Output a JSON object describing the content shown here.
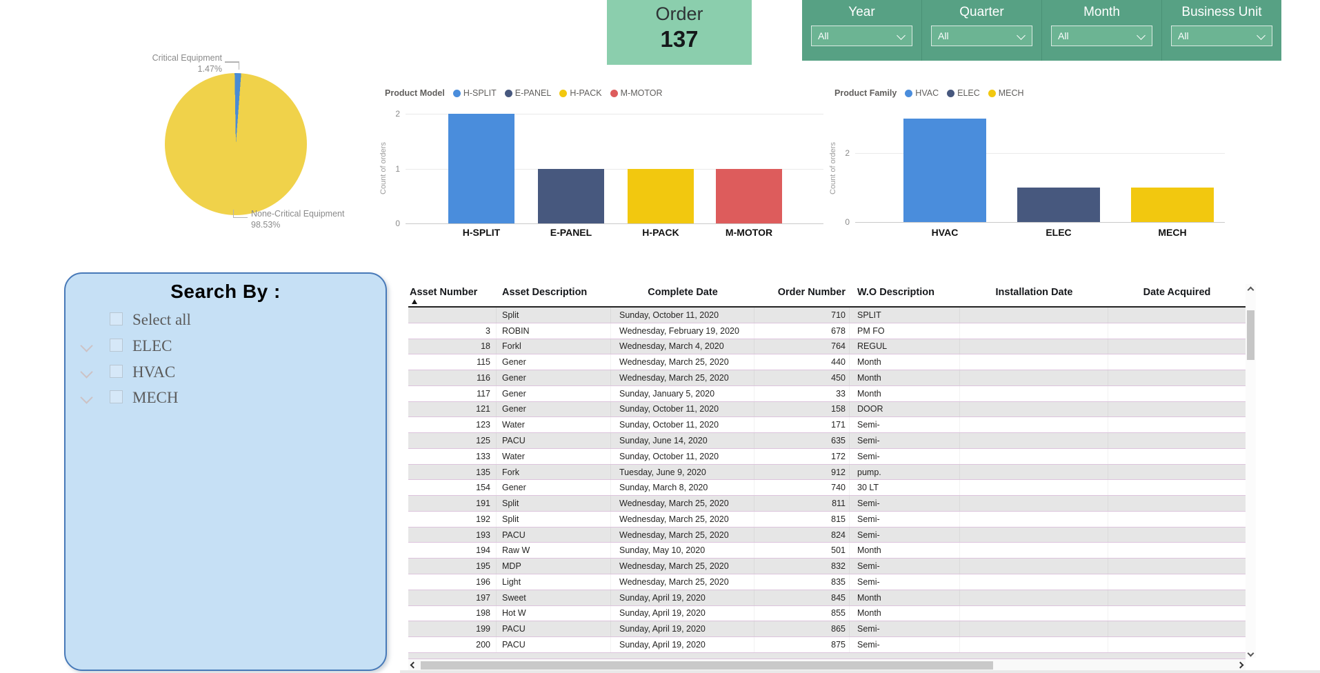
{
  "pie": {
    "callouts": [
      {
        "name": "Critical Equipment",
        "pct": "1.47%"
      },
      {
        "name": "None-Critical Equipment",
        "pct": "98.53%"
      }
    ],
    "slice_colors": [
      "#4A8BD4",
      "#F0D24A"
    ]
  },
  "order_card": {
    "title": "Order",
    "value": "137"
  },
  "slicers": {
    "items": [
      {
        "label": "Year",
        "value": "All"
      },
      {
        "label": "Quarter",
        "value": "All"
      },
      {
        "label": "Month",
        "value": "All"
      },
      {
        "label": "Business Unit",
        "value": "All"
      }
    ]
  },
  "product_model_chart": {
    "legend_title": "Product Model",
    "ylabel": "Count of orders",
    "yticks": [
      "2",
      "1",
      "0"
    ],
    "series": [
      {
        "label": "H-SPLIT",
        "value": 2,
        "color": "#4A8DDC"
      },
      {
        "label": "E-PANEL",
        "value": 1,
        "color": "#47587E"
      },
      {
        "label": "H-PACK",
        "value": 1,
        "color": "#F2C80F"
      },
      {
        "label": "M-MOTOR",
        "value": 1,
        "color": "#DD5C5C"
      }
    ]
  },
  "product_family_chart": {
    "legend_title": "Product Family",
    "ylabel": "Count of orders",
    "yticks": [
      "2",
      "0"
    ],
    "series": [
      {
        "label": "HVAC",
        "value": 3,
        "color": "#4A8DDC"
      },
      {
        "label": "ELEC",
        "value": 1,
        "color": "#47587E"
      },
      {
        "label": "MECH",
        "value": 1,
        "color": "#F2C80F"
      }
    ]
  },
  "search_panel": {
    "title": "Search By :",
    "items": [
      {
        "label": "Select all",
        "expandable": false,
        "checked": false
      },
      {
        "label": "ELEC",
        "expandable": true,
        "checked": false
      },
      {
        "label": "HVAC",
        "expandable": true,
        "checked": false
      },
      {
        "label": "MECH",
        "expandable": true,
        "checked": false
      }
    ]
  },
  "table": {
    "columns": [
      "Asset Number",
      "Asset Description",
      "Complete Date",
      "Order Number",
      "W.O Description",
      "Installation Date",
      "Date Acquired"
    ],
    "sort": {
      "column": "Asset Number",
      "direction": "asc"
    },
    "rows": [
      [
        "",
        "Split",
        "Sunday, October 11, 2020",
        "710",
        "SPLIT",
        "",
        ""
      ],
      [
        "3",
        "ROBIN",
        "Wednesday, February 19, 2020",
        "678",
        "PM FO",
        "",
        ""
      ],
      [
        "18",
        "Forkl",
        "Wednesday, March 4, 2020",
        "764",
        "REGUL",
        "",
        ""
      ],
      [
        "115",
        "Gener",
        "Wednesday, March 25, 2020",
        "440",
        "Month",
        "",
        ""
      ],
      [
        "116",
        "Gener",
        "Wednesday, March 25, 2020",
        "450",
        "Month",
        "",
        ""
      ],
      [
        "117",
        "Gener",
        "Sunday, January 5, 2020",
        "33",
        "Month",
        "",
        ""
      ],
      [
        "121",
        "Gener",
        "Sunday, October 11, 2020",
        "158",
        "DOOR",
        "",
        ""
      ],
      [
        "123",
        "Water",
        "Sunday, October 11, 2020",
        "171",
        "Semi-",
        "",
        ""
      ],
      [
        "125",
        "PACU",
        "Sunday, June 14, 2020",
        "635",
        "Semi-",
        "",
        ""
      ],
      [
        "133",
        "Water",
        "Sunday, October 11, 2020",
        "172",
        "Semi-",
        "",
        ""
      ],
      [
        "135",
        "Fork",
        "Tuesday, June 9, 2020",
        "912",
        "pump.",
        "",
        ""
      ],
      [
        "154",
        "Gener",
        "Sunday, March 8, 2020",
        "740",
        "30 LT",
        "",
        ""
      ],
      [
        "191",
        "Split",
        "Wednesday, March 25, 2020",
        "811",
        "Semi-",
        "",
        ""
      ],
      [
        "192",
        "Split",
        "Wednesday, March 25, 2020",
        "815",
        "Semi-",
        "",
        ""
      ],
      [
        "193",
        "PACU",
        "Wednesday, March 25, 2020",
        "824",
        "Semi-",
        "",
        ""
      ],
      [
        "194",
        "Raw W",
        "Sunday, May 10, 2020",
        "501",
        "Month",
        "",
        ""
      ],
      [
        "195",
        "MDP",
        "Wednesday, March 25, 2020",
        "832",
        "Semi-",
        "",
        ""
      ],
      [
        "196",
        "Light",
        "Wednesday, March 25, 2020",
        "835",
        "Semi-",
        "",
        ""
      ],
      [
        "197",
        "Sweet",
        "Sunday, April 19, 2020",
        "845",
        "Month",
        "",
        ""
      ],
      [
        "198",
        "Hot W",
        "Sunday, April 19, 2020",
        "855",
        "Month",
        "",
        ""
      ],
      [
        "199",
        "PACU",
        "Sunday, April 19, 2020",
        "865",
        "Semi-",
        "",
        ""
      ],
      [
        "200",
        "PACU",
        "Sunday, April 19, 2020",
        "875",
        "Semi-",
        "",
        ""
      ]
    ]
  },
  "colors": {
    "card_green": "#8BCEAD",
    "slicer_panel_green": "#57A184",
    "slicer_dropdown_green": "#6CB493",
    "search_panel_blue": "#C6E0F5",
    "search_border_blue": "#4779B8",
    "table_stripe_gray": "#E6E6E6",
    "table_row_border_pink": "#DCC3DC"
  },
  "chart_data": [
    {
      "type": "pie",
      "labels": [
        "Critical Equipment",
        "None-Critical Equipment"
      ],
      "values": [
        1.47,
        98.53
      ],
      "colors": [
        "#4A8BD4",
        "#F0D24A"
      ],
      "title": "",
      "legend_position": "callout-labels"
    },
    {
      "type": "bar",
      "title": "Product Model",
      "categories": [
        "H-SPLIT",
        "E-PANEL",
        "H-PACK",
        "M-MOTOR"
      ],
      "values": [
        2,
        1,
        1,
        1
      ],
      "xlabel": "",
      "ylabel": "Count of orders",
      "ylim": [
        0,
        2
      ],
      "yticks": [
        0,
        1,
        2
      ],
      "grid": true,
      "legend_position": "top"
    },
    {
      "type": "bar",
      "title": "Product Family",
      "categories": [
        "HVAC",
        "ELEC",
        "MECH"
      ],
      "values": [
        3,
        1,
        1
      ],
      "xlabel": "",
      "ylabel": "Count of orders",
      "ylim": [
        0,
        3
      ],
      "yticks": [
        0,
        2
      ],
      "grid": true,
      "legend_position": "top"
    }
  ]
}
